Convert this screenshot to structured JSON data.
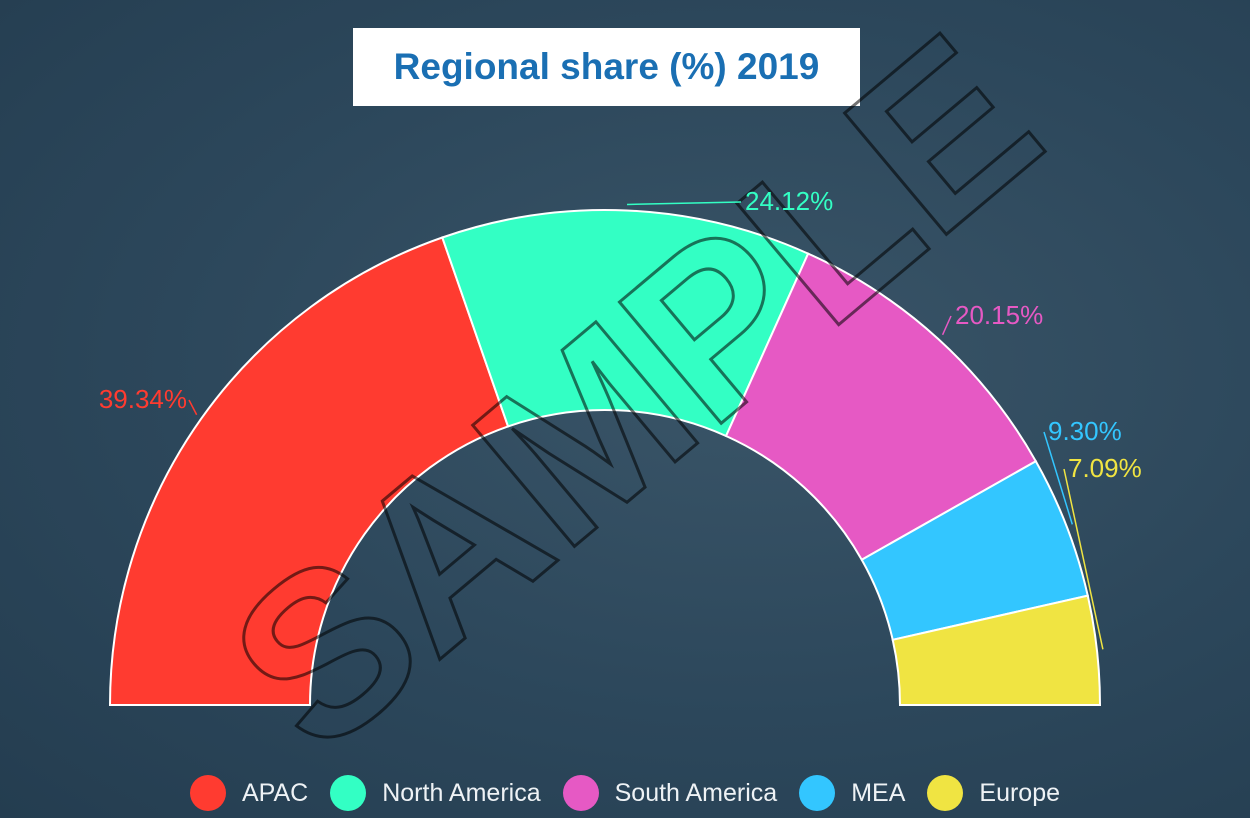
{
  "chart_data": {
    "type": "pie",
    "variant": "semi-donut",
    "title": "Regional share (%) 2019",
    "categories": [
      "APAC",
      "North America",
      "South America",
      "MEA",
      "Europe"
    ],
    "values": [
      39.34,
      24.12,
      20.15,
      9.3,
      7.09
    ],
    "labels": [
      "39.34%",
      "24.12%",
      "20.15%",
      "9.30%",
      "7.09%"
    ],
    "colors": [
      "#ff3b30",
      "#33ffc4",
      "#e659c4",
      "#33c6ff",
      "#f0e442"
    ],
    "legend_position": "bottom"
  },
  "watermark": "SAMPLE"
}
